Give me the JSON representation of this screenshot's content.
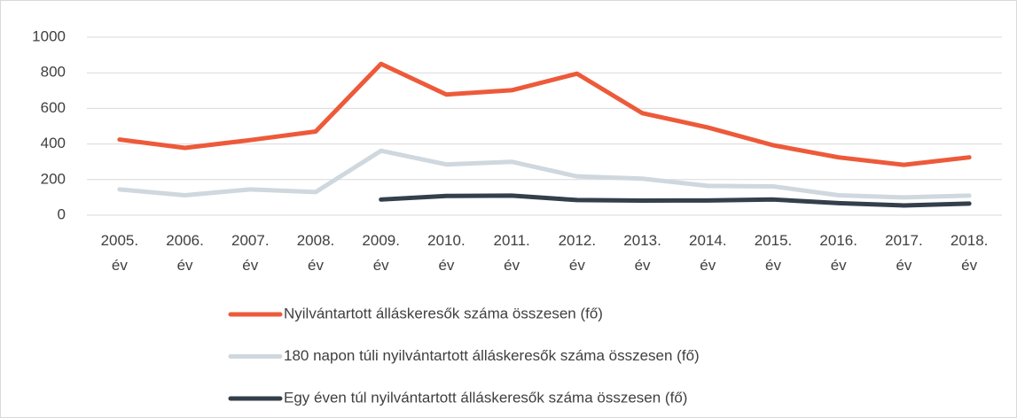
{
  "chart_data": {
    "type": "line",
    "categories": [
      "2005. év",
      "2006. év",
      "2007. év",
      "2008. év",
      "2009. év",
      "2010. év",
      "2011. év",
      "2012. év",
      "2013. év",
      "2014. év",
      "2015. év",
      "2016. év",
      "2017. év",
      "2018. év"
    ],
    "series": [
      {
        "name": "Nyilvántartott álláskeresők száma összesen (fő)",
        "color": "#ed5a3a",
        "values": [
          425,
          378,
          422,
          470,
          850,
          678,
          702,
          795,
          573,
          493,
          393,
          325,
          283,
          325
        ]
      },
      {
        "name": "180 napon túli nyilvántartott álláskeresők száma összesen (fő)",
        "color": "#cfd8de",
        "values": [
          145,
          112,
          145,
          130,
          362,
          285,
          300,
          218,
          205,
          165,
          162,
          112,
          100,
          110
        ]
      },
      {
        "name": "Egy éven túl nyilvántartott álláskeresők száma összesen (fő)",
        "color": "#333f4b",
        "values": [
          null,
          null,
          null,
          null,
          88,
          108,
          110,
          85,
          82,
          83,
          88,
          68,
          55,
          65
        ]
      }
    ],
    "ylim": [
      0,
      1000
    ],
    "yticks": [
      0,
      200,
      400,
      600,
      800,
      1000
    ],
    "grid": true,
    "legend": "bottom"
  }
}
